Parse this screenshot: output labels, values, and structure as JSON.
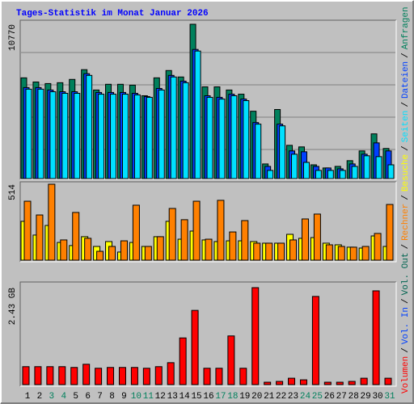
{
  "title": "Tages-Statistik im Monat Januar 2026",
  "legend_separator": "/",
  "chart_data": [
    {
      "type": "bar",
      "ylim": [
        0,
        10770
      ],
      "yticks": [
        10770
      ],
      "series": [
        {
          "name": "Anfragen",
          "color": "#00805c",
          "values": [
            7030,
            6740,
            6630,
            6690,
            6920,
            7600,
            6180,
            6580,
            6580,
            6520,
            5780,
            7030,
            7540,
            7090,
            10770,
            6400,
            6400,
            6180,
            5890,
            4700,
            1020,
            4820,
            2320,
            2210,
            960,
            740,
            850,
            1250,
            1930,
            3120,
            2100
          ]
        },
        {
          "name": "Dateien",
          "color": "#0040ff",
          "values": [
            6350,
            6350,
            6180,
            6060,
            6060,
            7320,
            6010,
            6010,
            6010,
            5950,
            5720,
            6290,
            7200,
            6800,
            9010,
            5780,
            5670,
            5890,
            5550,
            3910,
            850,
            3800,
            1930,
            1870,
            850,
            740,
            680,
            1020,
            1700,
            2490,
            1930
          ]
        },
        {
          "name": "Seiten",
          "color": "#00e0ff",
          "values": [
            6240,
            6240,
            6060,
            5950,
            5950,
            7200,
            5890,
            5890,
            5890,
            5840,
            5670,
            6180,
            7090,
            6690,
            8900,
            5670,
            5550,
            5780,
            5440,
            3800,
            570,
            3680,
            1700,
            1130,
            570,
            570,
            570,
            850,
            1590,
            1530,
            960
          ]
        }
      ]
    },
    {
      "type": "bar",
      "ylim": [
        0,
        514
      ],
      "yticks": [
        514
      ],
      "series": [
        {
          "name": "Besuche",
          "color": "#ffff00",
          "values": [
            263,
            170,
            235,
            120,
            99,
            159,
            93,
            126,
            55,
            120,
            93,
            159,
            263,
            142,
            197,
            137,
            126,
            131,
            131,
            126,
            115,
            115,
            175,
            148,
            153,
            115,
            104,
            88,
            82,
            164,
            93
          ]
        },
        {
          "name": "Rechner",
          "color": "#ff8000",
          "values": [
            399,
            306,
            514,
            137,
            323,
            148,
            60,
            93,
            131,
            372,
            93,
            159,
            350,
            274,
            399,
            142,
            405,
            191,
            268,
            115,
            115,
            115,
            137,
            279,
            312,
            104,
            93,
            88,
            93,
            181,
            377
          ]
        }
      ]
    },
    {
      "type": "bar",
      "ylim": [
        0,
        2.43
      ],
      "yticks": [
        {
          "value": 2.43,
          "label": "2.43 GB"
        }
      ],
      "categories": [
        "1",
        "2",
        "3",
        "4",
        "5",
        "6",
        "7",
        "8",
        "9",
        "10",
        "11",
        "12",
        "13",
        "14",
        "15",
        "16",
        "17",
        "18",
        "19",
        "20",
        "21",
        "22",
        "23",
        "24",
        "25",
        "26",
        "27",
        "28",
        "29",
        "30",
        "31"
      ],
      "category_colors": [
        "#000000",
        "#000000",
        "#00805c",
        "#00805c",
        "#000000",
        "#000000",
        "#000000",
        "#000000",
        "#000000",
        "#00805c",
        "#00805c",
        "#000000",
        "#000000",
        "#000000",
        "#000000",
        "#000000",
        "#00805c",
        "#00805c",
        "#000000",
        "#000000",
        "#000000",
        "#000000",
        "#000000",
        "#00805c",
        "#00805c",
        "#000000",
        "#000000",
        "#000000",
        "#000000",
        "#000000",
        "#00805c"
      ],
      "series": [
        {
          "name": "Vol. Out",
          "color": "#006450"
        },
        {
          "name": "Vol. In",
          "color": "#0040ff"
        },
        {
          "name": "Volumen",
          "color": "#ff0000",
          "values": [
            0.45,
            0.45,
            0.45,
            0.45,
            0.43,
            0.51,
            0.41,
            0.43,
            0.43,
            0.43,
            0.41,
            0.45,
            0.55,
            1.17,
            1.86,
            0.41,
            0.41,
            1.22,
            0.41,
            2.43,
            0.06,
            0.08,
            0.16,
            0.12,
            2.21,
            0.06,
            0.06,
            0.08,
            0.16,
            2.35,
            0.16
          ]
        }
      ]
    }
  ]
}
